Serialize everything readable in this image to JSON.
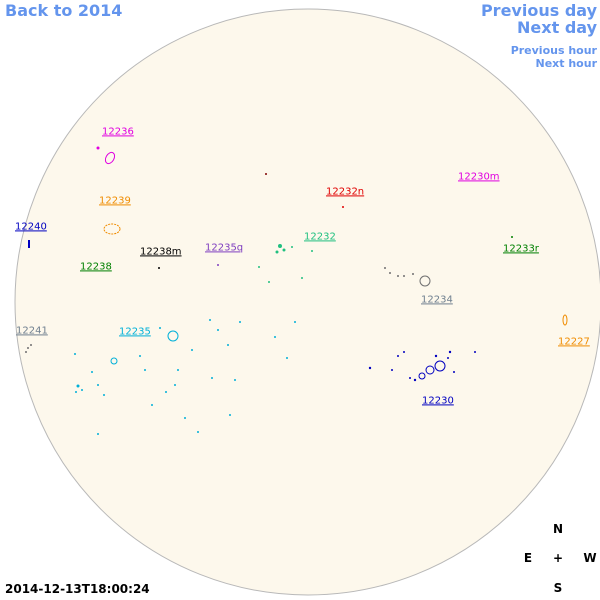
{
  "nav": {
    "back": "Back to 2014",
    "previous_day": "Previous day",
    "next_day": "Next day",
    "previous_hour": "Previous hour",
    "next_hour": "Next hour"
  },
  "regions": [
    "12236",
    "12239",
    "12240",
    "12238",
    "12238m",
    "12235q",
    "12232",
    "12232n",
    "12230m",
    "12233r",
    "12234",
    "12241",
    "12235",
    "12227",
    "12230"
  ],
  "timestamp": "2014-12-13T18:00:24",
  "compass": {
    "north": "N",
    "east": "E",
    "center": "+",
    "west": "W",
    "south": "S"
  }
}
